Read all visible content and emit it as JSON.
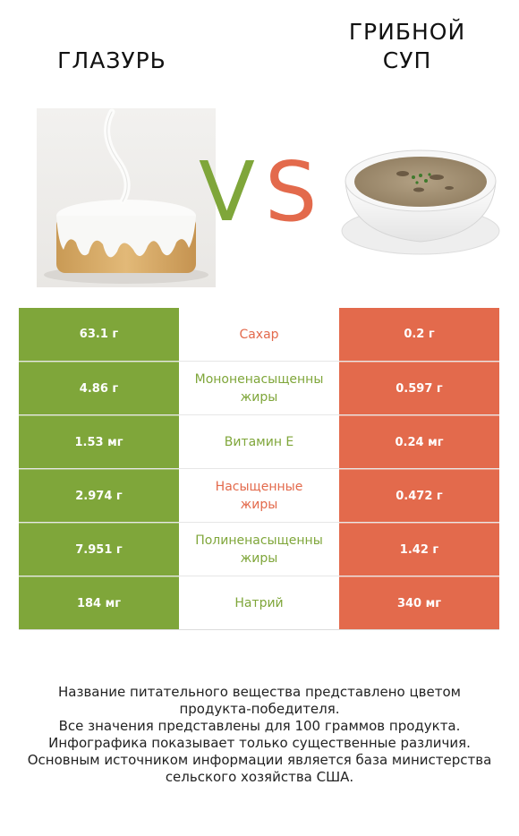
{
  "left_title": "ГЛАЗУРЬ",
  "right_title_line1": "ГРИБНОЙ",
  "right_title_line2": "СУП",
  "vs_v": "V",
  "vs_s": "S",
  "colors": {
    "left": "#7fa63a",
    "right": "#e36a4c"
  },
  "rows": [
    {
      "left": "63.1 г",
      "label_line1": "Сахар",
      "label_line2": "",
      "right": "0.2 г",
      "winner": "right"
    },
    {
      "left": "4.86 г",
      "label_line1": "Мононенасыщенны",
      "label_line2": "жиры",
      "right": "0.597 г",
      "winner": "left"
    },
    {
      "left": "1.53 мг",
      "label_line1": "Витамин E",
      "label_line2": "",
      "right": "0.24 мг",
      "winner": "left"
    },
    {
      "left": "2.974 г",
      "label_line1": "Насыщенные",
      "label_line2": "жиры",
      "right": "0.472 г",
      "winner": "right"
    },
    {
      "left": "7.951 г",
      "label_line1": "Полиненасыщенны",
      "label_line2": "жиры",
      "right": "1.42 г",
      "winner": "left"
    },
    {
      "left": "184 мг",
      "label_line1": "Натрий",
      "label_line2": "",
      "right": "340 мг",
      "winner": "left"
    }
  ],
  "footer": [
    "Название питательного вещества представлено цветом",
    "продукта-победителя.",
    "Все значения представлены для 100 граммов продукта.",
    "Инфографика показывает только существенные различия.",
    "Основным источником информации является база министерства",
    "сельского хозяйства США."
  ]
}
